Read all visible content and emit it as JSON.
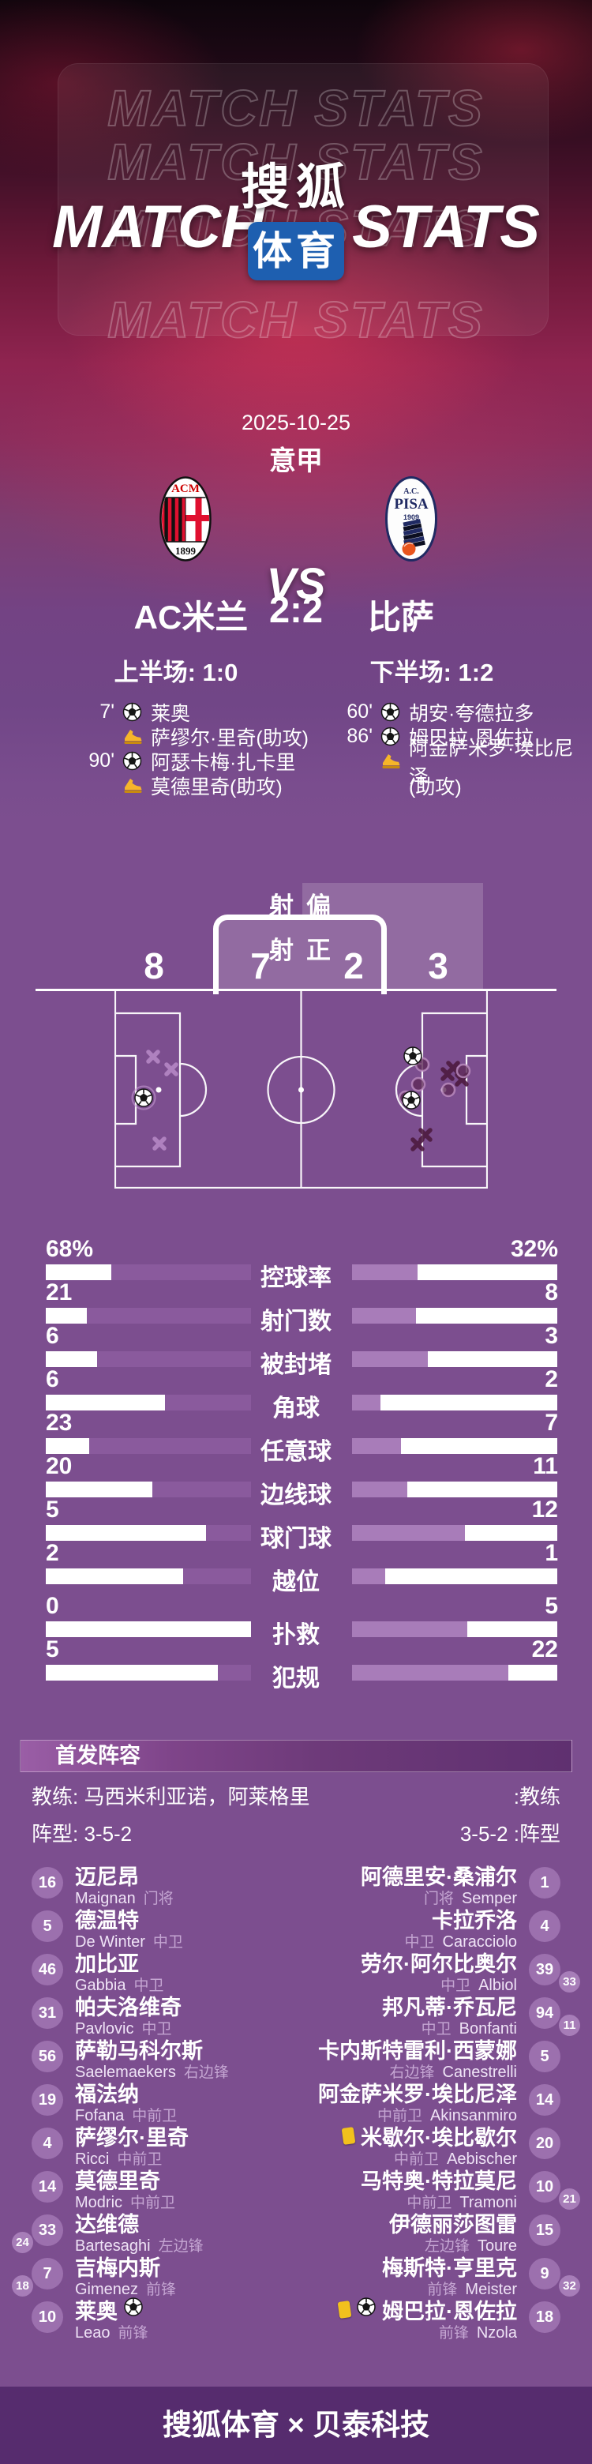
{
  "hero": {
    "watermark": "MATCH STATS",
    "title_left": "MATCH",
    "title_right": "STATS",
    "logo_top": "搜狐",
    "logo_bottom": "体育"
  },
  "match": {
    "date": "2025-10-25",
    "league": "意甲",
    "vs": "VS",
    "home_name": "AC米兰",
    "score": "2:2",
    "away_name": "比萨",
    "half1": "上半场: 1:0",
    "half2": "下半场: 1:2"
  },
  "events": {
    "home": [
      {
        "time": "7'",
        "ball": true,
        "text": "莱奥"
      },
      {
        "time": "",
        "boot": true,
        "text": "萨缪尔·里奇(助攻)"
      },
      {
        "time": "90'",
        "ball": true,
        "text": "阿瑟卡梅·扎卡里"
      },
      {
        "time": "",
        "boot": true,
        "text": "莫德里奇(助攻)"
      }
    ],
    "away": [
      {
        "time": "60'",
        "ball": true,
        "text": "胡安·夸德拉多"
      },
      {
        "time": "86'",
        "ball": true,
        "text": "姆巴拉·恩佐拉"
      },
      {
        "time": "",
        "boot": true,
        "text": "阿金萨米罗·埃比尼泽"
      },
      {
        "time": "",
        "text": "(助攻)"
      }
    ]
  },
  "shots": {
    "off_label_l": "射",
    "off_label_r": "偏",
    "on_label_l": "射",
    "on_label_r": "正",
    "home_off": "8",
    "home_on": "7",
    "away_on": "2",
    "away_off": "3"
  },
  "stats": {
    "rows": [
      {
        "label": "控球率",
        "home": "68%",
        "away": "32%",
        "home_fill": 68,
        "away_fill": 32
      },
      {
        "label": "射门数",
        "home": "21",
        "away": "8",
        "home_fill": 80,
        "away_fill": 31
      },
      {
        "label": "被封堵",
        "home": "6",
        "away": "3",
        "home_fill": 75,
        "away_fill": 37
      },
      {
        "label": "角球",
        "home": "6",
        "away": "2",
        "home_fill": 42,
        "away_fill": 14
      },
      {
        "label": "任意球",
        "home": "23",
        "away": "7",
        "home_fill": 79,
        "away_fill": 24
      },
      {
        "label": "边线球",
        "home": "20",
        "away": "11",
        "home_fill": 48,
        "away_fill": 27
      },
      {
        "label": "球门球",
        "home": "5",
        "away": "12",
        "home_fill": 22,
        "away_fill": 55
      },
      {
        "label": "越位",
        "home": "2",
        "away": "1",
        "home_fill": 33,
        "away_fill": 16
      },
      {
        "label": "扑救",
        "home": "0",
        "away": "5",
        "home_fill": 0,
        "away_fill": 56
      },
      {
        "label": "犯规",
        "home": "5",
        "away": "22",
        "home_fill": 16,
        "away_fill": 76
      }
    ]
  },
  "lineup": {
    "title": "首发阵容",
    "coach_home": "教练: 马西米利亚诺，阿莱格里",
    "coach_away": ":教练",
    "formation_home": "阵型: 3-5-2",
    "formation_away": "3-5-2 :阵型",
    "home": [
      {
        "num": "16",
        "cn": "迈尼昂",
        "en": "Maignan",
        "pos": "门将"
      },
      {
        "num": "5",
        "cn": "德温特",
        "en": "De Winter",
        "pos": "中卫"
      },
      {
        "num": "46",
        "cn": "加比亚",
        "en": "Gabbia",
        "pos": "中卫"
      },
      {
        "num": "31",
        "cn": "帕夫洛维奇",
        "en": "Pavlovic",
        "pos": "中卫"
      },
      {
        "num": "56",
        "cn": "萨勒马科尔斯",
        "en": "Saelemaekers",
        "pos": "右边锋"
      },
      {
        "num": "19",
        "cn": "福法纳",
        "en": "Fofana",
        "pos": "中前卫"
      },
      {
        "num": "4",
        "cn": "萨缪尔·里奇",
        "en": "Ricci",
        "pos": "中前卫"
      },
      {
        "num": "14",
        "cn": "莫德里奇",
        "en": "Modric",
        "pos": "中前卫"
      },
      {
        "num": "33",
        "sub": "24",
        "cn": "达维德",
        "en": "Bartesaghi",
        "pos": "左边锋"
      },
      {
        "num": "7",
        "sub": "18",
        "cn": "吉梅内斯",
        "en": "Gimenez",
        "pos": "前锋"
      },
      {
        "num": "10",
        "cn": "莱奥",
        "en": "Leao",
        "pos": "前锋",
        "ball": true
      }
    ],
    "away": [
      {
        "num": "1",
        "cn": "阿德里安·桑浦尔",
        "en": "Semper",
        "pos": "门将"
      },
      {
        "num": "4",
        "cn": "卡拉乔洛",
        "en": "Caracciolo",
        "pos": "中卫"
      },
      {
        "num": "39",
        "sub": "33",
        "cn": "劳尔·阿尔比奥尔",
        "en": "Albiol",
        "pos": "中卫"
      },
      {
        "num": "94",
        "sub": "11",
        "cn": "邦凡蒂·乔瓦尼",
        "en": "Bonfanti",
        "pos": "中卫"
      },
      {
        "num": "5",
        "cn": "卡内斯特雷利·西蒙娜",
        "en": "Canestrelli",
        "pos": "右边锋"
      },
      {
        "num": "14",
        "cn": "阿金萨米罗·埃比尼泽",
        "en": "Akinsanmiro",
        "pos": "中前卫"
      },
      {
        "num": "20",
        "cn": "米歇尔·埃比歇尔",
        "en": "Aebischer",
        "pos": "中前卫",
        "card": true
      },
      {
        "num": "10",
        "sub": "21",
        "cn": "马特奥·特拉莫尼",
        "en": "Tramoni",
        "pos": "中前卫"
      },
      {
        "num": "15",
        "cn": "伊德丽莎图雷",
        "en": "Toure",
        "pos": "左边锋"
      },
      {
        "num": "9",
        "sub": "32",
        "cn": "梅斯特·亨里克",
        "en": "Meister",
        "pos": "前锋"
      },
      {
        "num": "18",
        "cn": "姆巴拉·恩佐拉",
        "en": "Nzola",
        "pos": "前锋",
        "card": true,
        "ball": true
      }
    ]
  },
  "footer": {
    "credit": "搜狐体育 × 贝泰科技"
  },
  "colors": {
    "background": "#7c4e8f",
    "home_bar_fill": "#8a5a9d",
    "away_bar_fill": "#a87cb9",
    "logo_blue": "#1e5fb0",
    "footer_bg": "#562c6e",
    "badge": "#9c70ae",
    "yellow_card": "#f2c11d"
  }
}
